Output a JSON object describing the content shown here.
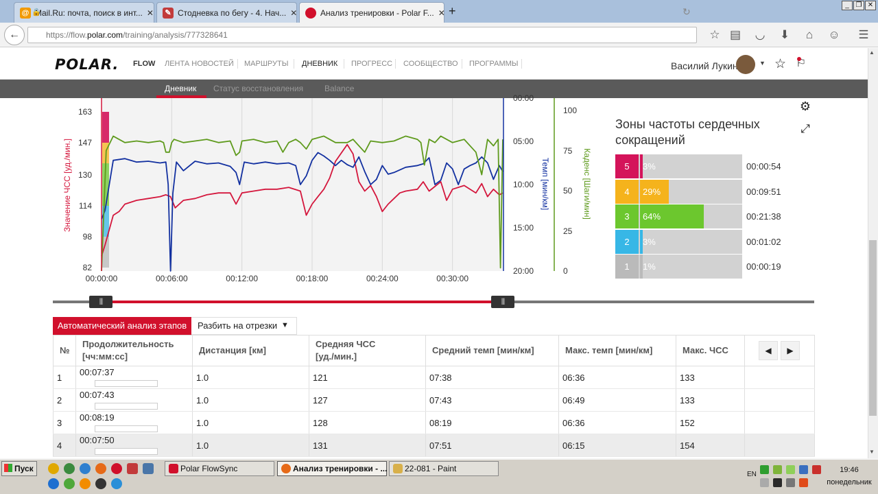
{
  "browser": {
    "tabs": [
      {
        "label": "Mail.Ru: почта, поиск в инт...",
        "icon": "at-icon",
        "color": "#f29a00"
      },
      {
        "label": "Стодневка по бегу - 4. Нач...",
        "icon": "runner-icon",
        "color": "#c23b3b"
      },
      {
        "label": "Анализ тренировки - Polar F...",
        "icon": "polar-icon",
        "color": "#d1102c"
      }
    ],
    "url_prefix": "https://flow.",
    "url_host": "polar.com",
    "url_path": "/training/analysis/777328641"
  },
  "header": {
    "logo": "POLAR.",
    "flow": "FLOW",
    "nav": [
      "ЛЕНТА НОВОСТЕЙ",
      "МАРШРУТЫ",
      "ДНЕВНИК",
      "ПРОГРЕСС",
      "СООБЩЕСТВО",
      "ПРОГРАММЫ"
    ],
    "active_nav": "ДНЕВНИК",
    "user": "Василий Лукин"
  },
  "subnav": {
    "items": [
      "Дневник",
      "Статус восстановления",
      "Balance"
    ],
    "active": "Дневник"
  },
  "chart_data": {
    "type": "line",
    "x_ticks": [
      "00:00:00",
      "00:06:00",
      "00:12:00",
      "00:18:00",
      "00:24:00",
      "00:30:00"
    ],
    "x_range_minutes": [
      0,
      34.3
    ],
    "hr_axis": {
      "label": "Значение ЧСС [уд./мин.]",
      "ticks": [
        "82",
        "98",
        "114",
        "130",
        "147",
        "163"
      ],
      "range": [
        82,
        175
      ]
    },
    "pace_axis": {
      "label": "Темп [мин/км]",
      "ticks": [
        "00:00",
        "05:00",
        "10:00",
        "15:00",
        "20:00"
      ],
      "range_minutes": [
        0,
        20
      ]
    },
    "cadence_axis": {
      "label": "Каденс [Шаги/мин]",
      "ticks": [
        "0",
        "25",
        "50",
        "75",
        "100"
      ],
      "range": [
        0,
        100
      ]
    },
    "colors": {
      "hr": "#d4163c",
      "pace": "#1230a0",
      "cadence": "#5e9a1c"
    },
    "series": [
      {
        "name": "Значение ЧСС [уд./мин.]",
        "axis": "hr",
        "x": [
          0,
          0.3,
          1,
          1.5,
          2,
          3,
          4,
          5,
          5.5,
          5.9,
          6.3,
          7,
          8,
          9,
          10,
          11,
          11.5,
          12,
          13,
          14,
          15,
          16,
          17,
          17.5,
          18,
          18.5,
          19,
          19.5,
          20,
          21,
          21.5,
          22,
          22.5,
          23,
          23.5,
          24,
          24.5,
          25,
          25.5,
          26,
          27,
          27.5,
          28,
          29,
          29.5,
          30,
          31,
          32,
          32.5,
          33,
          33.5,
          34,
          34.3
        ],
        "y": [
          90,
          96,
          112,
          114,
          118,
          120,
          121,
          122,
          123,
          122,
          116,
          120,
          121,
          123,
          124,
          124,
          118,
          124,
          125,
          126,
          126,
          127,
          125,
          112,
          118,
          122,
          126,
          132,
          141,
          150,
          145,
          130,
          125,
          128,
          122,
          114,
          118,
          121,
          124,
          125,
          126,
          130,
          125,
          130,
          120,
          126,
          128,
          124,
          129,
          122,
          126,
          123,
          124
        ]
      },
      {
        "name": "Темп [мин/км]",
        "axis": "pace",
        "x": [
          0,
          0.3,
          1,
          2,
          3,
          4,
          5,
          5.5,
          5.7,
          5.9,
          6.1,
          6.4,
          7,
          8,
          9,
          10,
          11,
          11.5,
          11.8,
          12.2,
          13,
          14,
          15,
          16,
          16.6,
          17,
          17.5,
          18,
          18.5,
          19,
          19.5,
          20,
          20.5,
          21,
          21.5,
          22,
          22.5,
          23,
          23.5,
          24,
          24.5,
          25,
          26,
          27,
          27.5,
          28,
          28.5,
          29,
          29.5,
          30,
          30.5,
          31,
          31.5,
          32,
          32.5,
          33,
          33.5,
          34,
          34.3
        ],
        "y": [
          14,
          13,
          7.2,
          7.0,
          7.4,
          7.3,
          7.5,
          7.4,
          10,
          20,
          11,
          7.4,
          8.4,
          7.3,
          7.6,
          7.5,
          7.9,
          8.6,
          10,
          7.4,
          7.6,
          7.4,
          7.6,
          7.5,
          7.8,
          10,
          9,
          7.2,
          6.3,
          6.7,
          7.2,
          7.8,
          7.2,
          7.7,
          8,
          6.8,
          8.5,
          10,
          9.4,
          7.8,
          8.8,
          8.6,
          8.0,
          7.8,
          7.6,
          6.9,
          10,
          9.5,
          7.5,
          8.2,
          10,
          8.2,
          7.8,
          7.5,
          6.8,
          7.5,
          9.4,
          7.8,
          8.5
        ]
      },
      {
        "name": "Каденс [Шаги/мин]",
        "axis": "cadence",
        "x": [
          0,
          0.4,
          1,
          2,
          3,
          4,
          5,
          5.3,
          5.5,
          5.8,
          6.0,
          6.2,
          7,
          8,
          9,
          10,
          11,
          11.5,
          11.8,
          12,
          13,
          14,
          15,
          15.5,
          16,
          16.6,
          17,
          17.5,
          18,
          19,
          20,
          21,
          21.5,
          22,
          22.5,
          23,
          24,
          25,
          26,
          27,
          27.3,
          27.6,
          28,
          28.5,
          29,
          29.5,
          30,
          31,
          32,
          32.5,
          33,
          33.5,
          33.9,
          34.1,
          34.3
        ],
        "y": [
          0,
          75,
          84,
          80,
          81,
          80,
          81,
          80,
          74,
          74,
          80,
          82,
          80,
          81,
          82,
          80,
          81,
          72,
          74,
          81,
          82,
          80,
          81,
          74,
          80,
          82,
          80,
          76,
          82,
          84,
          80,
          80,
          82,
          78,
          74,
          81,
          80,
          81,
          84,
          82,
          80,
          66,
          82,
          80,
          84,
          82,
          80,
          82,
          74,
          60,
          82,
          78,
          82,
          2,
          82
        ]
      }
    ]
  },
  "zones": {
    "title": "Зоны частоты сердечных сокращений",
    "rows": [
      {
        "zone": "5",
        "pct": "3%",
        "fraction": 0.03,
        "time": "00:00:54",
        "color": "#d4145a"
      },
      {
        "zone": "4",
        "pct": "29%",
        "fraction": 0.29,
        "time": "00:09:51",
        "color": "#f5b31c"
      },
      {
        "zone": "3",
        "pct": "64%",
        "fraction": 0.64,
        "time": "00:21:38",
        "color": "#6cc72e"
      },
      {
        "zone": "2",
        "pct": "3%",
        "fraction": 0.03,
        "time": "00:01:02",
        "color": "#37b7e6"
      },
      {
        "zone": "1",
        "pct": "1%",
        "fraction": 0.01,
        "time": "00:00:19",
        "color": "#bababa"
      }
    ]
  },
  "table": {
    "auto_button": "Автоматический анализ этапов",
    "split_button": "Разбить на отрезки",
    "headers": {
      "num": "№",
      "duration_line1": "Продолжительность",
      "duration_line2": "[чч:мм:сс]",
      "distance": "Дистанция [км]",
      "avg_hr_line1": "Средняя ЧСС",
      "avg_hr_line2": "[уд./мин.]",
      "avg_pace": "Средний темп [мин/км]",
      "max_pace": "Макс. темп [мин/км]",
      "max_hr": "Макс. ЧСС"
    },
    "rows": [
      {
        "num": "1",
        "duration": "00:07:37",
        "distance": "1.0",
        "avg_hr": "121",
        "avg_pace": "07:38",
        "max_pace": "06:36",
        "max_hr": "133"
      },
      {
        "num": "2",
        "duration": "00:07:43",
        "distance": "1.0",
        "avg_hr": "127",
        "avg_pace": "07:43",
        "max_pace": "06:49",
        "max_hr": "133"
      },
      {
        "num": "3",
        "duration": "00:08:19",
        "distance": "1.0",
        "avg_hr": "128",
        "avg_pace": "08:19",
        "max_pace": "06:36",
        "max_hr": "152"
      },
      {
        "num": "4",
        "duration": "00:07:50",
        "distance": "1.0",
        "avg_hr": "131",
        "avg_pace": "07:51",
        "max_pace": "06:15",
        "max_hr": "154"
      }
    ]
  },
  "taskbar": {
    "start": "Пуск",
    "tasks": [
      "Polar FlowSync",
      "Анализ тренировки - ...",
      "22-081 - Paint"
    ],
    "active_task": "Анализ тренировки - ...",
    "lang": "EN",
    "time": "19:46",
    "day": "понедельник"
  }
}
